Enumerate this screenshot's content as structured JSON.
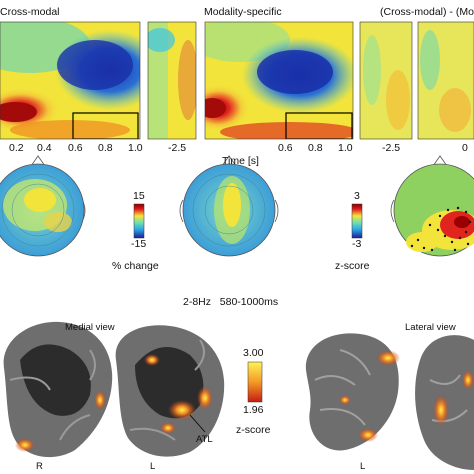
{
  "top_row": {
    "panels": [
      {
        "title": "Cross-modal"
      },
      {
        "title": "Modality-specific"
      },
      {
        "title": "(Cross-modal) - (Mo"
      }
    ],
    "ticks_left": [
      "0.2",
      "0.4",
      "0.6",
      "0.8",
      "1.0"
    ],
    "ticks_mid_narrow": [
      "-2.5"
    ],
    "ticks_mid": [
      "0.6",
      "0.8",
      "1.0"
    ],
    "ticks_right_narrow": [
      "-2.5"
    ],
    "ticks_right": [
      "0"
    ],
    "time_label": "Time [s]"
  },
  "middle_row": {
    "colorbar_left": {
      "max": "15",
      "min": "-15",
      "label": "% change"
    },
    "colorbar_right": {
      "max": "3",
      "min": "-3",
      "label": "z-score"
    },
    "caption": "2-8Hz   580-1000ms"
  },
  "bottom_row": {
    "medial_view": "Medial view",
    "lateral_view": "Lateral view",
    "colorbar": {
      "max": "3.00",
      "min": "1.96",
      "label": "z-score"
    },
    "annotation": "ATL",
    "hemis": [
      "R",
      "L",
      "L"
    ]
  },
  "colors": {
    "jet_blue": "#1a2fa8",
    "jet_cyan": "#3cc4e6",
    "jet_yellow": "#f2e43a",
    "jet_red": "#d4161a",
    "brain_gray": "#6e6e6e",
    "brain_dark": "#2c2c2c",
    "activation_orange": "#e8731c"
  }
}
